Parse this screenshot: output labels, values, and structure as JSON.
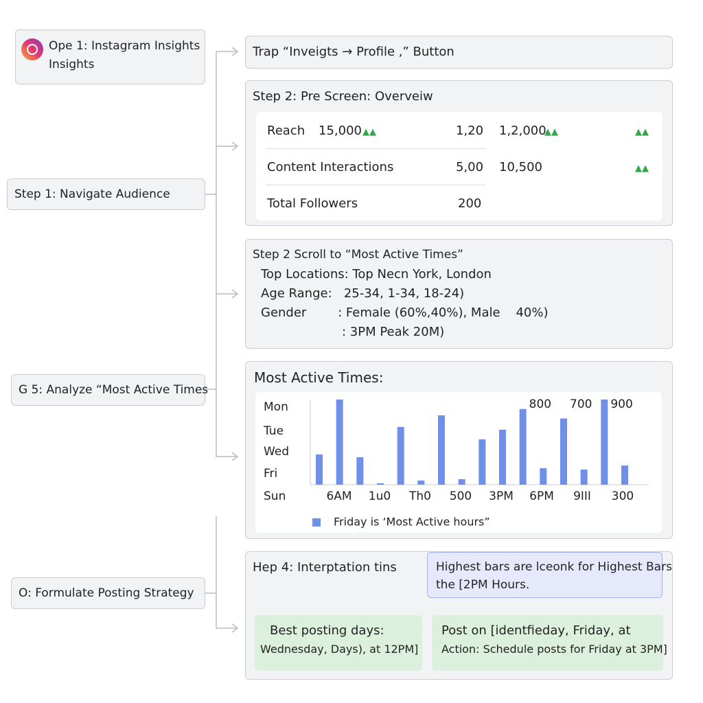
{
  "left_steps": [
    {
      "lines": [
        "Ope 1: Instagram Insights",
        "Insights"
      ]
    },
    {
      "lines": [
        "Step 1: Navigate Audience"
      ]
    },
    {
      "lines": [
        "G 5: Analyze “Most Active Times"
      ]
    },
    {
      "lines": [
        "O: Formulate Posting Strategy"
      ]
    }
  ],
  "step_a": {
    "title": "Trap “Inveigts → Profile ,” Button"
  },
  "overview": {
    "title": "Step 2: Pre Screen: Overveiw",
    "rows": [
      [
        "Reach",
        "15,000",
        "1,20",
        "1,2,000"
      ],
      [
        "Content Interactions",
        "5,00",
        "10,500"
      ],
      [
        "Total Followers",
        "200"
      ]
    ]
  },
  "audience": {
    "title": "Step 2 Scroll to “Most Active Times”",
    "lines": [
      "Top Locations: Top Necn York, London",
      "Age Range:   25-34, 1-34, 18-24)",
      "Gender        : Female (60%,40%), Male    40%)",
      ": 3PM Peak 20M)"
    ]
  },
  "chart": {
    "type": "bar",
    "title": "Most Active Times:",
    "day_labels": [
      "Mon",
      "Tue",
      "Wed",
      "Fri",
      "Sun"
    ],
    "x_labels": [
      "6AM",
      "1u0",
      "Th0",
      "500",
      "3PM",
      "6PM",
      "9III",
      "300"
    ],
    "values": [
      319,
      900,
      290,
      15,
      610,
      44,
      733,
      58,
      479,
      581,
      800,
      174,
      700,
      160,
      900,
      203
    ],
    "value_labels": [
      null,
      null,
      null,
      null,
      null,
      null,
      null,
      null,
      null,
      null,
      "800",
      null,
      "700",
      null,
      "900",
      null
    ],
    "color": "#6f8fe8",
    "legend": "Friday is ‘Most Active hours”"
  },
  "interpretation": {
    "title": "Hep 4: Interptation tins",
    "note": [
      "Highest bars are lceonk for Highest Bars",
      "the [2PM Hours."
    ],
    "green_left": [
      "Best posting days:",
      "Wednesday, Days), at 12PM]"
    ],
    "green_right": [
      "Post on [identfieday, Friday, at",
      "Action: Schedule posts for Friday at 3PM]"
    ]
  }
}
